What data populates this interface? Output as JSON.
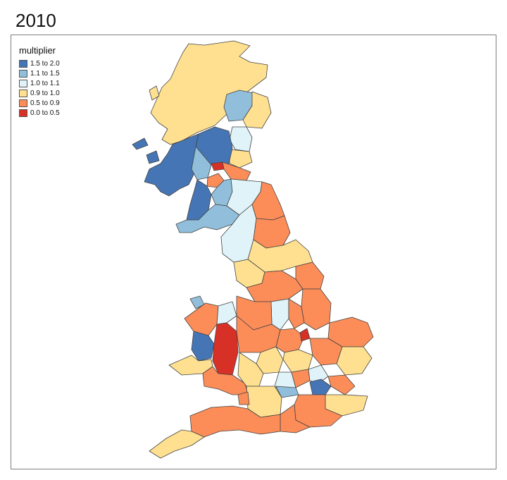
{
  "title": "2010",
  "legend": {
    "title": "multiplier",
    "items": [
      {
        "label": "1.5 to 2.0",
        "color": "#4575b4"
      },
      {
        "label": "1.1 to 1.5",
        "color": "#91bfdb"
      },
      {
        "label": "1.0 to 1.1",
        "color": "#e0f3f8"
      },
      {
        "label": "0.9 to 1.0",
        "color": "#fee090"
      },
      {
        "label": "0.5 to 0.9",
        "color": "#fc8d59"
      },
      {
        "label": "0.0 to 0.5",
        "color": "#d73027"
      }
    ]
  },
  "map": {
    "regions": [
      {
        "name": "northern-highlands",
        "class": "0.9 to 1.0"
      },
      {
        "name": "aberdeenshire-north",
        "class": "1.1 to 1.5"
      },
      {
        "name": "aberdeen",
        "class": "0.9 to 1.0"
      },
      {
        "name": "angus",
        "class": "1.0 to 1.1"
      },
      {
        "name": "fife",
        "class": "0.9 to 1.0"
      },
      {
        "name": "perth-and-stirling",
        "class": "1.5 to 2.0"
      },
      {
        "name": "west-highlands-argyll",
        "class": "1.5 to 2.0"
      },
      {
        "name": "dunbartonshire",
        "class": "1.1 to 1.5"
      },
      {
        "name": "edinburgh",
        "class": "0.0 to 0.5"
      },
      {
        "name": "lothians",
        "class": "0.5 to 0.9"
      },
      {
        "name": "glasgow",
        "class": "0.5 to 0.9"
      },
      {
        "name": "lanarkshire",
        "class": "1.1 to 1.5"
      },
      {
        "name": "ayrshire",
        "class": "1.5 to 2.0"
      },
      {
        "name": "dumfries-and-galloway",
        "class": "1.1 to 1.5"
      },
      {
        "name": "scottish-borders",
        "class": "1.0 to 1.1"
      },
      {
        "name": "cumbria",
        "class": "1.0 to 1.1"
      },
      {
        "name": "northumberland",
        "class": "0.5 to 0.9"
      },
      {
        "name": "durham",
        "class": "0.5 to 0.9"
      },
      {
        "name": "north-yorkshire",
        "class": "0.9 to 1.0"
      },
      {
        "name": "lancashire",
        "class": "0.9 to 1.0"
      },
      {
        "name": "east-yorkshire",
        "class": "0.5 to 0.9"
      },
      {
        "name": "lincolnshire",
        "class": "0.5 to 0.9"
      },
      {
        "name": "greater-manchester",
        "class": "0.5 to 0.9"
      },
      {
        "name": "derbyshire",
        "class": "1.0 to 1.1"
      },
      {
        "name": "nottinghamshire",
        "class": "0.5 to 0.9"
      },
      {
        "name": "anglesey",
        "class": "1.1 to 1.5"
      },
      {
        "name": "gwynedd",
        "class": "0.5 to 0.9"
      },
      {
        "name": "clwyd",
        "class": "1.0 to 1.1"
      },
      {
        "name": "cheshire",
        "class": "0.5 to 0.9"
      },
      {
        "name": "ceredigion",
        "class": "1.5 to 2.0"
      },
      {
        "name": "powys",
        "class": "0.0 to 0.5"
      },
      {
        "name": "pembrokeshire",
        "class": "0.9 to 1.0"
      },
      {
        "name": "south-wales",
        "class": "0.5 to 0.9"
      },
      {
        "name": "shropshire-staffordshire",
        "class": "0.5 to 0.9"
      },
      {
        "name": "west-midlands",
        "class": "0.9 to 1.0"
      },
      {
        "name": "leicestershire",
        "class": "0.5 to 0.9"
      },
      {
        "name": "peterborough",
        "class": "0.0 to 0.5"
      },
      {
        "name": "norfolk",
        "class": "0.5 to 0.9"
      },
      {
        "name": "suffolk",
        "class": "0.9 to 1.0"
      },
      {
        "name": "cambridgeshire",
        "class": "0.5 to 0.9"
      },
      {
        "name": "northamptonshire",
        "class": "0.9 to 1.0"
      },
      {
        "name": "gloucestershire",
        "class": "0.9 to 1.0"
      },
      {
        "name": "oxfordshire",
        "class": "1.0 to 1.1"
      },
      {
        "name": "bedfordshire",
        "class": "0.5 to 0.9"
      },
      {
        "name": "hertfordshire",
        "class": "1.0 to 1.1"
      },
      {
        "name": "london",
        "class": "1.5 to 2.0"
      },
      {
        "name": "essex",
        "class": "0.5 to 0.9"
      },
      {
        "name": "kent",
        "class": "0.9 to 1.0"
      },
      {
        "name": "berkshire",
        "class": "1.1 to 1.5"
      },
      {
        "name": "surrey-sussex",
        "class": "0.5 to 0.9"
      },
      {
        "name": "somerset-wiltshire",
        "class": "0.9 to 1.0"
      },
      {
        "name": "hampshire",
        "class": "0.5 to 0.9"
      },
      {
        "name": "dorset-devon",
        "class": "0.5 to 0.9"
      },
      {
        "name": "cornwall",
        "class": "0.9 to 1.0"
      },
      {
        "name": "bristol",
        "class": "0.5 to 0.9"
      }
    ]
  }
}
